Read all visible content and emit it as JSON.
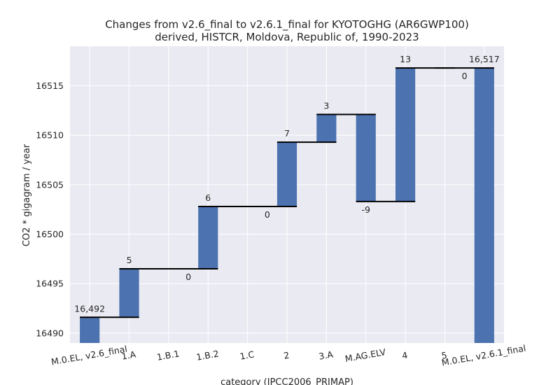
{
  "chart_data": {
    "type": "bar",
    "subtype": "waterfall",
    "title": "Changes from v2.6_final to v2.6.1_final for KYOTOGHG (AR6GWP100)",
    "subtitle": "derived, HISTCR, Moldova, Republic of, 1990-2023",
    "xlabel": "category (IPCC2006_PRIMAP)",
    "ylabel": "CO2 * gigagram / year",
    "ylim": [
      16489,
      16519
    ],
    "yticks": [
      16490,
      16495,
      16500,
      16505,
      16510,
      16515
    ],
    "grid": true,
    "bar_color": "#4c72b0",
    "background": "#eaeaf2",
    "categories": [
      "M.0.EL, v2.6_final",
      "1.A",
      "1.B.1",
      "1.B.2",
      "1.C",
      "2",
      "3.A",
      "M.AG.ELV",
      "4",
      "5",
      "M.0.EL, v2.6.1_final"
    ],
    "steps": [
      {
        "kind": "total",
        "start": 0,
        "end": 16491.6,
        "label": "16,492"
      },
      {
        "kind": "delta",
        "start": 16491.6,
        "end": 16496.5,
        "label": "5"
      },
      {
        "kind": "delta",
        "start": 16496.5,
        "end": 16496.5,
        "label": "0"
      },
      {
        "kind": "delta",
        "start": 16496.5,
        "end": 16502.8,
        "label": "6"
      },
      {
        "kind": "delta",
        "start": 16502.8,
        "end": 16502.8,
        "label": "0"
      },
      {
        "kind": "delta",
        "start": 16502.8,
        "end": 16509.3,
        "label": "7"
      },
      {
        "kind": "delta",
        "start": 16509.3,
        "end": 16512.1,
        "label": "3"
      },
      {
        "kind": "delta",
        "start": 16512.1,
        "end": 16503.3,
        "label": "-9"
      },
      {
        "kind": "delta",
        "start": 16503.3,
        "end": 16516.8,
        "label": "13"
      },
      {
        "kind": "delta",
        "start": 16516.8,
        "end": 16516.8,
        "label": "0"
      },
      {
        "kind": "total",
        "start": 0,
        "end": 16516.8,
        "label": "16,517"
      }
    ]
  }
}
